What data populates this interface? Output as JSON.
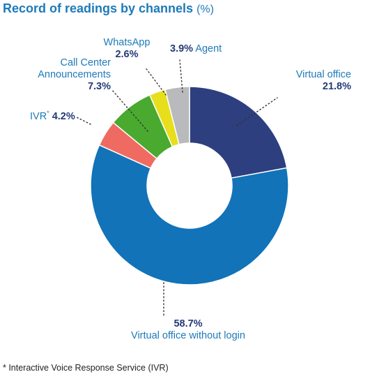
{
  "chart_data": {
    "type": "pie",
    "title": "Record of readings by channels",
    "unit": "(%)",
    "colors": {
      "Virtual office": "#2d3f7e",
      "Virtual office without login": "#1273b8",
      "IVR": "#ef6b62",
      "Call Center Announcements": "#4aa92f",
      "WhatsApp": "#e7df1c",
      "Agent": "#b9babc"
    },
    "slices": [
      {
        "label": "Virtual office",
        "value": 21.8,
        "value_label": "21.8%"
      },
      {
        "label": "Virtual office without login",
        "value": 58.7,
        "value_label": "58.7%"
      },
      {
        "label": "IVR",
        "value": 4.2,
        "value_label": "4.2%",
        "marker": "*"
      },
      {
        "label": "Call Center Announcements",
        "label_lines": [
          "Call Center",
          "Announcements"
        ],
        "value": 7.3,
        "value_label": "7.3%"
      },
      {
        "label": "WhatsApp",
        "value": 2.6,
        "value_label": "2.6%"
      },
      {
        "label": "Agent",
        "value": 3.9,
        "value_label": "3.9%"
      }
    ]
  },
  "footnote": "* Interactive Voice Response Service (IVR)"
}
